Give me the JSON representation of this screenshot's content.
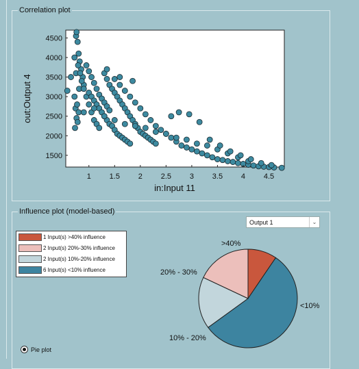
{
  "correlation_panel": {
    "title": "Correlation plot"
  },
  "influence_panel": {
    "title": "Influence plot (model-based)",
    "dropdown": {
      "selected": "Output 1",
      "arrow_icon": "chevron-down-icon"
    },
    "legend": [
      {
        "label": "1 Input(s) >40% influence",
        "color": "#c9573d"
      },
      {
        "label": "2 Input(s) 20%-30% influence",
        "color": "#ecbfbb"
      },
      {
        "label": "2 Input(s) 10%-20% influence",
        "color": "#c2d6dc"
      },
      {
        "label": "6 Input(s) <10% influence",
        "color": "#3d84a0"
      }
    ],
    "pie_labels": {
      "gt40": ">40%",
      "p20_30": "20% - 30%",
      "p10_20": "10% - 20%",
      "lt10": "<10%"
    },
    "radio": {
      "label": "Pie plot",
      "selected": true
    }
  },
  "chart_data": [
    {
      "type": "scatter",
      "title": "",
      "xlabel": "in:Input 11",
      "ylabel": "out:Output 4",
      "xlim": [
        0.55,
        4.8
      ],
      "ylim": [
        1200,
        4700
      ],
      "xticks": [
        1,
        1.5,
        2,
        2.5,
        3,
        3.5,
        4,
        4.5
      ],
      "yticks": [
        1500,
        2000,
        2500,
        3000,
        3500,
        4000,
        4500
      ],
      "marker_color": "#3d8aa0",
      "grid": false,
      "series": [
        {
          "x": [
            0.58,
            0.65,
            0.72,
            0.75,
            0.76,
            0.78,
            0.8,
            0.82,
            0.85,
            0.88,
            0.9,
            0.72,
            0.74,
            0.76,
            0.78,
            0.8,
            0.73,
            0.77,
            0.81,
            0.75,
            0.79,
            0.83,
            0.86,
            0.9,
            0.95,
            1.0,
            1.05,
            1.1,
            1.15,
            1.2,
            0.95,
            1.0,
            1.05,
            1.1,
            1.15,
            1.2,
            1.25,
            1.3,
            1.35,
            1.4,
            1.0,
            1.05,
            1.1,
            1.15,
            1.2,
            1.25,
            1.3,
            1.35,
            1.4,
            1.45,
            1.5,
            1.55,
            1.6,
            1.65,
            1.7,
            1.75,
            1.8,
            1.3,
            1.35,
            1.4,
            1.45,
            1.5,
            1.55,
            1.6,
            1.65,
            1.7,
            1.75,
            1.8,
            1.85,
            1.9,
            1.95,
            2.0,
            2.05,
            2.1,
            2.15,
            2.2,
            2.25,
            2.3,
            1.5,
            1.6,
            1.7,
            1.8,
            1.9,
            2.0,
            2.1,
            2.2,
            2.3,
            2.4,
            2.5,
            2.6,
            2.7,
            2.8,
            2.9,
            3.0,
            3.1,
            3.2,
            3.3,
            3.4,
            3.5,
            3.6,
            3.7,
            3.8,
            3.9,
            4.0,
            4.1,
            4.2,
            4.3,
            4.4,
            4.5,
            4.6,
            4.75,
            0.9,
            1.1,
            1.3,
            1.5,
            1.7,
            1.9,
            2.1,
            2.3,
            2.5,
            2.7,
            2.9,
            3.1,
            3.3,
            3.5,
            3.7,
            3.9,
            4.1,
            1.35,
            1.6,
            1.85,
            2.6,
            2.75,
            2.95,
            3.15,
            3.35,
            3.55,
            3.75,
            3.95,
            4.15,
            4.35,
            4.55
          ],
          "y": [
            3150,
            3500,
            4000,
            4550,
            4650,
            4400,
            4100,
            3900,
            3700,
            3500,
            3300,
            3000,
            2700,
            2450,
            2350,
            2600,
            2200,
            2800,
            3200,
            3600,
            3800,
            3600,
            3400,
            3200,
            3000,
            2800,
            2600,
            2400,
            2300,
            2200,
            3800,
            3650,
            3500,
            3350,
            3200,
            3050,
            2950,
            2850,
            2750,
            2650,
            3100,
            3000,
            2900,
            2800,
            2700,
            2600,
            2500,
            2400,
            2300,
            2250,
            2150,
            2050,
            2000,
            1950,
            1900,
            1850,
            1800,
            3600,
            3450,
            3300,
            3200,
            3100,
            3000,
            2900,
            2800,
            2700,
            2600,
            2500,
            2400,
            2300,
            2200,
            2100,
            2050,
            2000,
            1950,
            1900,
            1850,
            1800,
            3450,
            3300,
            3150,
            3000,
            2850,
            2700,
            2550,
            2400,
            2250,
            2150,
            2050,
            1950,
            1850,
            1750,
            1700,
            1650,
            1600,
            1550,
            1500,
            1450,
            1400,
            1380,
            1350,
            1330,
            1300,
            1280,
            1260,
            1240,
            1220,
            1210,
            1200,
            1190,
            1180,
            2600,
            2700,
            2500,
            2400,
            2300,
            2250,
            2200,
            2100,
            2050,
            1950,
            1900,
            1800,
            1750,
            1650,
            1550,
            1450,
            1350,
            3700,
            3500,
            3400,
            2500,
            2600,
            2550,
            2350,
            1900,
            1750,
            1600,
            1500,
            1400,
            1300,
            1250
          ]
        }
      ]
    },
    {
      "type": "pie",
      "title": "",
      "slices": [
        {
          "label": ">40%",
          "value": 9.5,
          "color": "#c9573d"
        },
        {
          "label": "<10%",
          "value": 55.5,
          "color": "#3d84a0"
        },
        {
          "label": "10% - 20%",
          "value": 17,
          "color": "#c2d6dc"
        },
        {
          "label": "20% - 30%",
          "value": 18,
          "color": "#ecbfbb"
        }
      ]
    }
  ]
}
